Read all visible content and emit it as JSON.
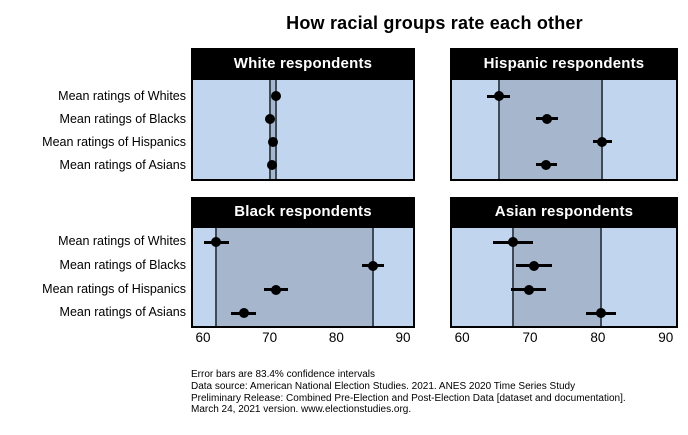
{
  "title": "How racial groups rate each other",
  "colors": {
    "panel_bg": "#c2d5ee",
    "band_bg": "#a6b6cc",
    "range_line": "#3e4a58",
    "dot": "#000000",
    "header_bg": "#000000",
    "header_text": "#ffffff",
    "text": "#000000"
  },
  "chart_data": {
    "type": "scatter",
    "title": "How racial groups rate each other",
    "categories": [
      "Mean ratings of Whites",
      "Mean ratings of Blacks",
      "Mean ratings of Hispanics",
      "Mean ratings of Asians"
    ],
    "x_ticks": [
      60,
      70,
      80,
      90
    ],
    "x_domain": [
      58.5,
      91.5
    ],
    "grid": false,
    "legend": "none",
    "panels": [
      {
        "title": "White respondents",
        "values": [
          71.0,
          70.0,
          70.5,
          70.3
        ],
        "ci_half_width": [
          0.5,
          0.5,
          0.5,
          0.5
        ],
        "range_band": [
          70.0,
          71.0
        ]
      },
      {
        "title": "Hispanic respondents",
        "values": [
          65.4,
          72.5,
          80.6,
          72.4
        ],
        "ci_half_width": [
          1.7,
          1.6,
          1.4,
          1.5
        ],
        "range_band": [
          65.4,
          80.6
        ]
      },
      {
        "title": "Black respondents",
        "values": [
          62.0,
          85.5,
          71.0,
          66.1
        ],
        "ci_half_width": [
          1.9,
          1.7,
          1.8,
          1.9
        ],
        "range_band": [
          62.0,
          85.5
        ]
      },
      {
        "title": "Asian respondents",
        "values": [
          67.5,
          70.6,
          69.8,
          80.5
        ],
        "ci_half_width": [
          3.0,
          2.6,
          2.6,
          2.2
        ],
        "range_band": [
          67.5,
          80.5
        ]
      }
    ],
    "notes": [
      "Error bars are 83.4% confidence intervals",
      "Data source: American National Election Studies. 2021. ANES 2020 Time Series Study",
      "Preliminary Release: Combined Pre-Election and Post-Election Data [dataset and documentation].",
      "March 24, 2021 version. www.electionstudies.org."
    ]
  }
}
